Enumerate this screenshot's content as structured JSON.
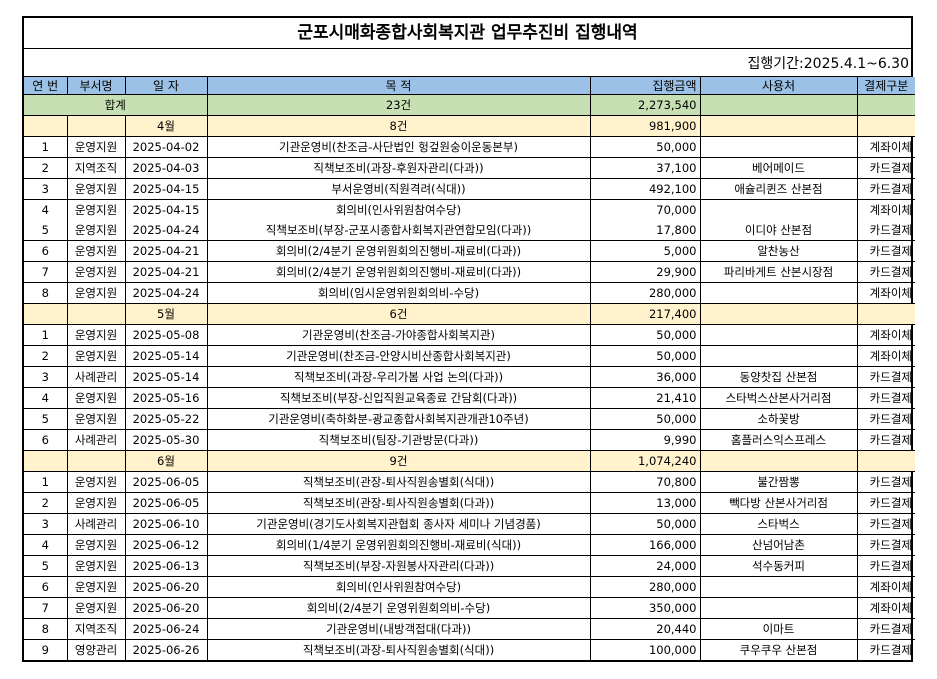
{
  "title": "군포시매화종합사회복지관 업무추진비 집행내역",
  "period": "집행기간:2025.4.1~6.30",
  "headers": [
    "연 번",
    "부서명",
    "일 자",
    "목 적",
    "집행금액",
    "사용처",
    "결제구분"
  ],
  "total": {
    "label": "합계",
    "count": "23건",
    "amount": "2,273,540"
  },
  "months": [
    {
      "label": "4월",
      "count": "8건",
      "amount": "981,900",
      "rows": [
        [
          "1",
          "운영지원",
          "2025-04-02",
          "기관운영비(찬조금-사단법인 헝겊원숭이운동본부)",
          "50,000",
          "",
          "계좌이체"
        ],
        [
          "2",
          "지역조직",
          "2025-04-03",
          "직책보조비(과장-후원자관리(다과))",
          "37,100",
          "베어메이드",
          "카드결제"
        ],
        [
          "3",
          "운영지원",
          "2025-04-15",
          "부서운영비(직원격려(식대))",
          "492,100",
          "애슐리퀸즈 산본점",
          "카드결제"
        ],
        [
          "4",
          "운영지원",
          "2025-04-15",
          "회의비(인사위원참여수당)",
          "70,000",
          "",
          "계좌이체"
        ],
        [
          "5",
          "운영지원",
          "2025-04-24",
          "직책보조비(부장-군포시종합사회복지관연합모임(다과))",
          "17,800",
          "이디야 산본점",
          "카드결제"
        ],
        [
          "6",
          "운영지원",
          "2025-04-21",
          "회의비(2/4분기 운영위원회의진행비-재료비(다과))",
          "5,000",
          "알찬농산",
          "카드결제"
        ],
        [
          "7",
          "운영지원",
          "2025-04-21",
          "회의비(2/4분기 운영위원회의진행비-재료비(다과))",
          "29,900",
          "파리바게트 산본시장점",
          "카드결제"
        ],
        [
          "8",
          "운영지원",
          "2025-04-24",
          "회의비(임시운영위원회의비-수당)",
          "280,000",
          "",
          "계좌이체"
        ]
      ]
    },
    {
      "label": "5월",
      "count": "6건",
      "amount": "217,400",
      "rows": [
        [
          "1",
          "운영지원",
          "2025-05-08",
          "기관운영비(찬조금-가야종합사회복지관)",
          "50,000",
          "",
          "계좌이체"
        ],
        [
          "2",
          "운영지원",
          "2025-05-14",
          "기관운영비(찬조금-안양시비산종합사회복지관)",
          "50,000",
          "",
          "계좌이체"
        ],
        [
          "3",
          "사례관리",
          "2025-05-14",
          "직책보조비(과장-우리가봄 사업 논의(다과))",
          "36,000",
          "동양찻집 산본점",
          "카드결제"
        ],
        [
          "4",
          "운영지원",
          "2025-05-16",
          "직책보조비(부장-신입직원교육종료 간담회(다과))",
          "21,410",
          "스타벅스산본사거리점",
          "카드결제"
        ],
        [
          "5",
          "운영지원",
          "2025-05-22",
          "기관운영비(축하화분-광교종합사회복지관개관10주년)",
          "50,000",
          "소하꽃방",
          "카드결제"
        ],
        [
          "6",
          "사례관리",
          "2025-05-30",
          "직책보조비(팀장-기관방문(다과))",
          "9,990",
          "홈플러스익스프레스",
          "카드결제"
        ]
      ]
    },
    {
      "label": "6월",
      "count": "9건",
      "amount": "1,074,240",
      "rows": [
        [
          "1",
          "운영지원",
          "2025-06-05",
          "직책보조비(관장-퇴사직원송별회(식대))",
          "70,800",
          "불간짬뽕",
          "카드결제"
        ],
        [
          "2",
          "운영지원",
          "2025-06-05",
          "직책보조비(관장-퇴사직원송별회(다과))",
          "13,000",
          "빽다방 산본사거리점",
          "카드결제"
        ],
        [
          "3",
          "사례관리",
          "2025-06-10",
          "기관운영비(경기도사회복지관협회 종사자 세미나 기념경품)",
          "50,000",
          "스타벅스",
          "카드결제"
        ],
        [
          "4",
          "운영지원",
          "2025-06-12",
          "회의비(1/4분기 운영위원회의진행비-재료비(식대))",
          "166,000",
          "산넘어남촌",
          "카드결제"
        ],
        [
          "5",
          "운영지원",
          "2025-06-13",
          "직책보조비(부장-자원봉사자관리(다과))",
          "24,000",
          "석수동커피",
          "카드결제"
        ],
        [
          "6",
          "운영지원",
          "2025-06-20",
          "회의비(인사위원참여수당)",
          "280,000",
          "",
          "계좌이체"
        ],
        [
          "7",
          "운영지원",
          "2025-06-20",
          "회의비(2/4분기 운영위원회의비-수당)",
          "350,000",
          "",
          "계좌이체"
        ],
        [
          "8",
          "지역조직",
          "2025-06-24",
          "기관운영비(내방객접대(다과))",
          "20,440",
          "이마트",
          "카드결제"
        ],
        [
          "9",
          "영양관리",
          "2025-06-26",
          "직책보조비(과장-퇴사직원송별회(식대))",
          "100,000",
          "쿠우쿠우 산본점",
          "카드결제"
        ]
      ]
    }
  ]
}
